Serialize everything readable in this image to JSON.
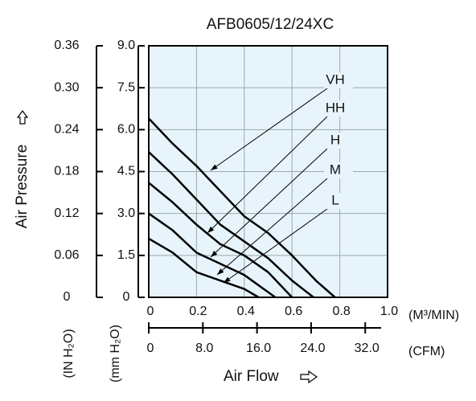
{
  "chart_data": {
    "type": "line",
    "title": "AFB0605/12/24XC",
    "xlabel": "Air Flow",
    "x_units": "(M³/MIN)",
    "x2_units": "(CFM)",
    "ylabel": "Air Pressure",
    "y_units": "(mm H₂O)",
    "y2_units": "(IN H₂O)",
    "xlim": [
      0,
      1.0
    ],
    "xticks": [
      0,
      0.2,
      0.4,
      0.6,
      0.8,
      {
        "value": 1.0,
        "label": "1.0"
      }
    ],
    "x2lim": [
      0,
      35.3
    ],
    "x2ticks": [
      0,
      {
        "value": 8,
        "label": "8.0"
      },
      {
        "value": 16,
        "label": "16.0"
      },
      {
        "value": 24,
        "label": "24.0"
      },
      {
        "value": 32,
        "label": "32.0"
      }
    ],
    "ylim": [
      0,
      9.0
    ],
    "yticks": [
      0,
      1.5,
      {
        "value": 3,
        "label": "3.0"
      },
      4.5,
      {
        "value": 6,
        "label": "6.0"
      },
      7.5,
      {
        "value": 9,
        "label": "9.0"
      }
    ],
    "y2lim": [
      0,
      0.36
    ],
    "y2ticks": [
      0,
      0.06,
      0.12,
      0.18,
      0.24,
      {
        "value": 0.3,
        "label": "0.30"
      },
      0.36
    ],
    "grid": true,
    "background": "#e8f4fb",
    "series": [
      {
        "name": "VH",
        "color": "#000000",
        "x": [
          0,
          0.1,
          0.2,
          0.3,
          0.4,
          0.5,
          0.6,
          0.7,
          0.78
        ],
        "values": [
          6.4,
          5.5,
          4.7,
          3.8,
          2.9,
          2.3,
          1.5,
          0.6,
          0
        ]
      },
      {
        "name": "HH",
        "color": "#000000",
        "x": [
          0,
          0.1,
          0.2,
          0.3,
          0.4,
          0.5,
          0.6,
          0.69
        ],
        "values": [
          5.2,
          4.4,
          3.5,
          2.6,
          2.0,
          1.4,
          0.6,
          0
        ]
      },
      {
        "name": "H",
        "color": "#000000",
        "x": [
          0,
          0.1,
          0.2,
          0.3,
          0.4,
          0.5,
          0.6
        ],
        "values": [
          4.1,
          3.4,
          2.6,
          1.9,
          1.5,
          0.9,
          0
        ]
      },
      {
        "name": "M",
        "color": "#000000",
        "x": [
          0,
          0.1,
          0.2,
          0.3,
          0.4,
          0.53
        ],
        "values": [
          3.0,
          2.4,
          1.6,
          1.2,
          0.8,
          0
        ]
      },
      {
        "name": "L",
        "color": "#000000",
        "x": [
          0,
          0.1,
          0.2,
          0.3,
          0.4,
          0.46
        ],
        "values": [
          2.1,
          1.6,
          0.9,
          0.6,
          0.3,
          0
        ]
      }
    ]
  }
}
